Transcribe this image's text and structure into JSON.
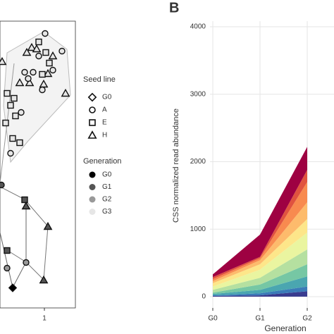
{
  "chart_data": [
    {
      "type": "scatter",
      "xlim": [
        0.37,
        1.44
      ],
      "xticks": [
        1
      ],
      "ylim": [
        -2.035,
        2.035
      ],
      "x": [
        0.82,
        0.89,
        0.75,
        1.12,
        0.65,
        0.79,
        1.05,
        0.99,
        1.3,
        0.4,
        1.01,
        1.25,
        0.92,
        0.72,
        0.84,
        0.77,
        1.12,
        0.97,
        0.52,
        0.67,
        0.92,
        1.02,
        1.07,
        0.97,
        0.47,
        0.57,
        0.52,
        0.59,
        0.45,
        0.65,
        0.55,
        0.72,
        0.74,
        0.39,
        1.05,
        0.47,
        0.74,
        0.99,
        0.55,
        0.47
      ],
      "values": [
        1.66,
        1.64,
        1.59,
        1.54,
        1.16,
        1.16,
        1.29,
        1.14,
        1.01,
        1.46,
        1.86,
        1.61,
        1.54,
        1.31,
        1.31,
        1.22,
        1.34,
        1.06,
        0.16,
        0.74,
        1.74,
        1.59,
        1.44,
        1.28,
        1.01,
        0.94,
        0.84,
        0.69,
        0.59,
        0.31,
        0.37,
        -0.5,
        -0.59,
        -0.29,
        -0.88,
        -1.22,
        -1.39,
        -1.64,
        -1.75,
        -1.47
      ],
      "seed_line": [
        "H",
        "H",
        "H",
        "H",
        "H",
        "H",
        "H",
        "H",
        "H",
        "H",
        "A",
        "A",
        "A",
        "A",
        "A",
        "A",
        "A",
        "A",
        "A",
        "A",
        "E",
        "E",
        "E",
        "E",
        "E",
        "E",
        "E",
        "E",
        "E",
        "E",
        "E",
        "E",
        "H",
        "A",
        "H",
        "E",
        "A",
        "H",
        "G0",
        "A"
      ],
      "generation": [
        "G3",
        "G3",
        "G3",
        "G3",
        "G3",
        "G3",
        "G3",
        "G3",
        "G3",
        "G3",
        "G3",
        "G3",
        "G3",
        "G3",
        "G3",
        "G3",
        "G3",
        "G3",
        "G3",
        "G3",
        "G3",
        "G3",
        "G3",
        "G3",
        "G3",
        "G3",
        "G3",
        "G3",
        "G3",
        "G3",
        "G3",
        "G1",
        "G1",
        "G1",
        "G1",
        "G1",
        "G2",
        "G1",
        "G0",
        "G2"
      ],
      "legends": [
        {
          "title": "Seed line",
          "items": [
            "G0",
            "A",
            "E",
            "H"
          ],
          "shapes": [
            "diamond",
            "circle",
            "square",
            "triangle"
          ]
        },
        {
          "title": "Generation",
          "items": [
            "G0",
            "G1",
            "G2",
            "G3"
          ],
          "colors": [
            "#000000",
            "#555555",
            "#999999",
            "#e6e6e6"
          ]
        }
      ]
    },
    {
      "type": "stacked-area",
      "panel_label": "B",
      "y_label": "CSS normalized read abundance",
      "x_label": "Generation",
      "categories": [
        "G0",
        "G1",
        "G2"
      ],
      "ylim": [
        0,
        4000
      ],
      "yticks": [
        0,
        1000,
        2000,
        3000,
        4000
      ],
      "grid": true,
      "series": [
        {
          "color": "#3a3c8f",
          "values": [
            10,
            20,
            80
          ]
        },
        {
          "color": "#3b7bb8",
          "values": [
            10,
            30,
            70
          ]
        },
        {
          "color": "#4aa6b0",
          "values": [
            20,
            50,
            150
          ]
        },
        {
          "color": "#76c7a4",
          "values": [
            20,
            80,
            180
          ]
        },
        {
          "color": "#b5e0a0",
          "values": [
            40,
            100,
            220
          ]
        },
        {
          "color": "#eaf5a0",
          "values": [
            50,
            120,
            250
          ]
        },
        {
          "color": "#fde68a",
          "values": [
            50,
            80,
            200
          ]
        },
        {
          "color": "#fdbb6c",
          "values": [
            30,
            60,
            250
          ]
        },
        {
          "color": "#f88a4f",
          "values": [
            30,
            30,
            300
          ]
        },
        {
          "color": "#e0533f",
          "values": [
            30,
            20,
            180
          ]
        },
        {
          "color": "#9e0142",
          "values": [
            40,
            330,
            340
          ]
        }
      ]
    }
  ]
}
